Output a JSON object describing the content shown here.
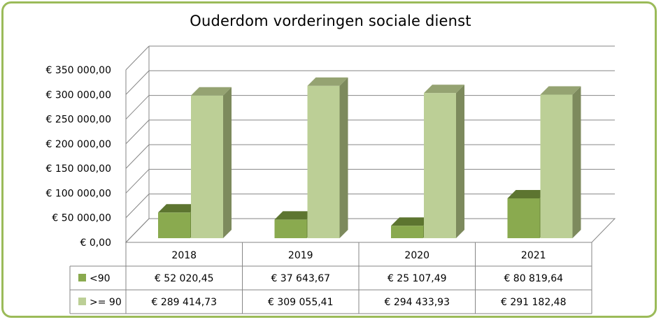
{
  "chart_data": {
    "type": "bar",
    "title": "Ouderdom vorderingen sociale dienst",
    "categories": [
      "2018",
      "2019",
      "2020",
      "2021"
    ],
    "series": [
      {
        "name": "<90",
        "values": [
          52020.45,
          37643.67,
          25107.49,
          80819.64
        ],
        "labels": [
          "€ 52 020,45",
          "€ 37 643,67",
          "€ 25 107,49",
          "€ 80 819,64"
        ],
        "color": "#8aaa4f",
        "side_color": "#6f8b3c",
        "top_color": "#5d7530"
      },
      {
        "name": ">= 90",
        "values": [
          289414.73,
          309055.41,
          294433.93,
          291182.48
        ],
        "labels": [
          "€ 289 414,73",
          "€ 309 055,41",
          "€ 294 433,93",
          "€ 291 182,48"
        ],
        "color": "#bccf96",
        "side_color": "#7d8a5d",
        "top_color": "#95a372"
      }
    ],
    "ylim": [
      0,
      350000
    ],
    "y_ticks": [
      "€ 0,00",
      "€ 50 000,00",
      "€ 100 000,00",
      "€ 150 000,00",
      "€ 200 000,00",
      "€ 250 000,00",
      "€ 300 000,00",
      "€ 350 000,00"
    ],
    "grid": true,
    "data_table": true
  },
  "colors": {
    "frame": "#9bbb59",
    "grid": "#868686"
  }
}
